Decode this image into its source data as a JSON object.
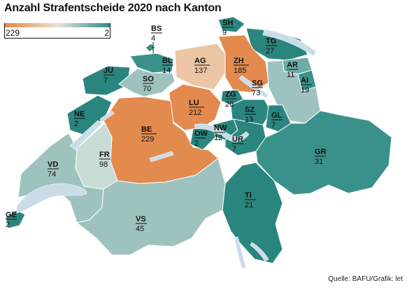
{
  "title": "Anzahl Strafentscheide 2020 nach Kanton",
  "source": "Quelle: BAFU/Grafik: let",
  "legend": {
    "max_label": "229",
    "min_label": "2",
    "color_high": "#e8833a",
    "color_mid": "#e8e3d8",
    "color_low": "#2c8a87"
  },
  "colors": {
    "orange": "#e38a4f",
    "peach": "#ecc5a4",
    "pale_teal": "#c8dcd6",
    "light_teal": "#9ec3bf",
    "mid_teal": "#6eaba7",
    "teal": "#3a918c",
    "dark_teal": "#2b857f",
    "lake": "#c9dce8"
  },
  "cantons": [
    {
      "code": "BS",
      "value": "4"
    },
    {
      "code": "SH",
      "value": "9"
    },
    {
      "code": "TG",
      "value": "27"
    },
    {
      "code": "BL",
      "value": "14"
    },
    {
      "code": "AG",
      "value": "137"
    },
    {
      "code": "ZH",
      "value": "185"
    },
    {
      "code": "AR",
      "value": "11"
    },
    {
      "code": "AI",
      "value": "19"
    },
    {
      "code": "JU",
      "value": "7"
    },
    {
      "code": "SO",
      "value": "70"
    },
    {
      "code": "SG",
      "value": "73"
    },
    {
      "code": "ZG",
      "value": "20"
    },
    {
      "code": "LU",
      "value": "212"
    },
    {
      "code": "SZ",
      "value": "13"
    },
    {
      "code": "GL",
      "value": "7"
    },
    {
      "code": "NE",
      "value": "2"
    },
    {
      "code": "BE",
      "value": "229"
    },
    {
      "code": "OW",
      "value": "2"
    },
    {
      "code": "NW",
      "value": "12"
    },
    {
      "code": "UR",
      "value": "7"
    },
    {
      "code": "FR",
      "value": "98"
    },
    {
      "code": "VD",
      "value": "74"
    },
    {
      "code": "GR",
      "value": "31"
    },
    {
      "code": "TI",
      "value": "21"
    },
    {
      "code": "GE",
      "value": "2"
    },
    {
      "code": "VS",
      "value": "45"
    }
  ]
}
